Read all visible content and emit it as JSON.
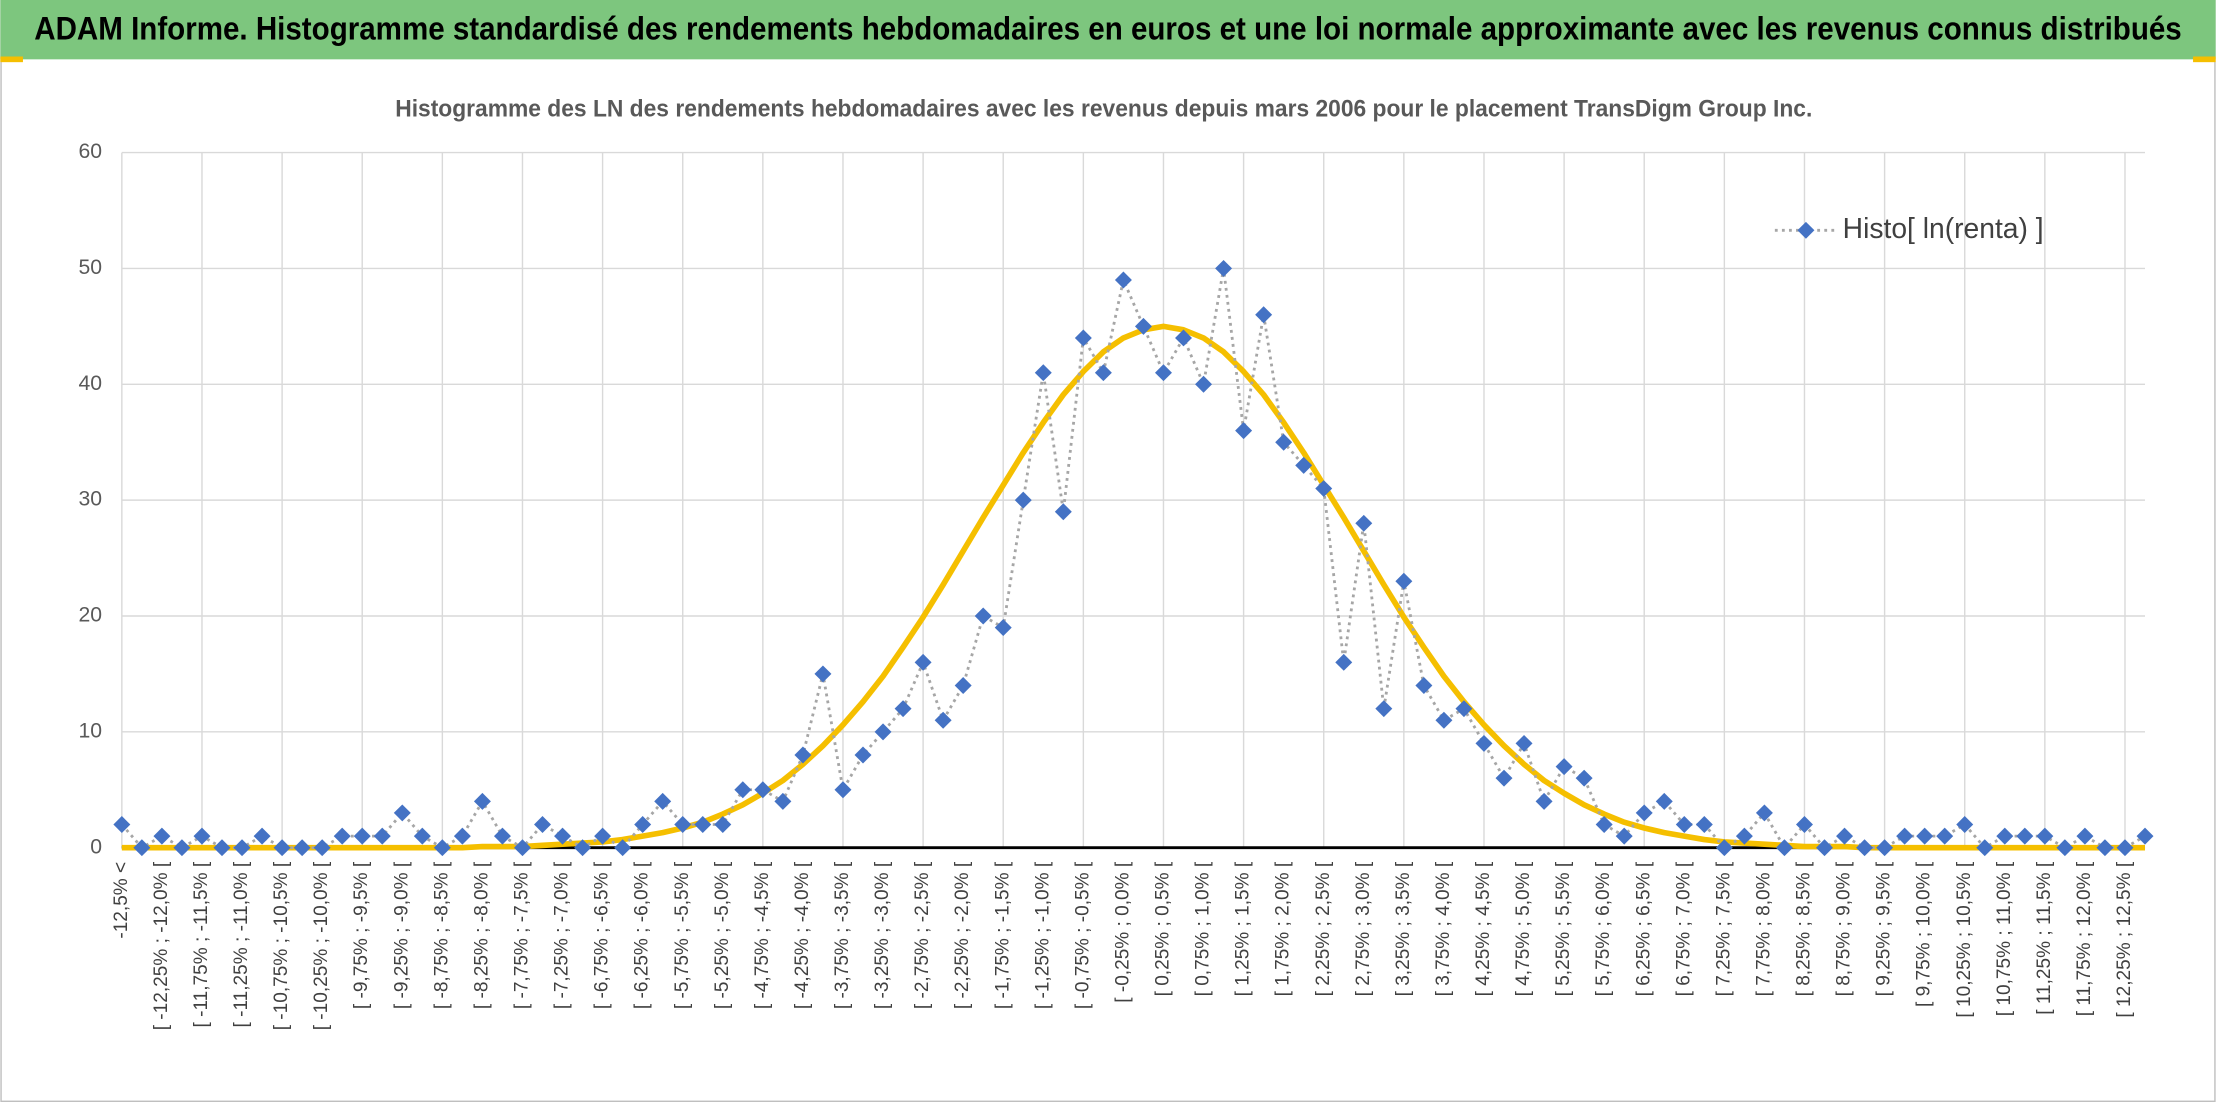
{
  "header": {
    "title": "ADAM Informe. Histogramme standardisé des rendements hebdomadaires en euros et une loi normale approximante avec les revenus connus distribués"
  },
  "chart_data": {
    "type": "line",
    "title": "Histogramme des LN des rendements hebdomadaires avec les revenus depuis mars 2006 pour le placement TransDigm Group Inc.",
    "categories": [
      "-12,5% <",
      null,
      "[ -12,25% ; -12,0% [",
      null,
      "[ -11,75% ; -11,5% [",
      null,
      "[ -11,25% ; -11,0% [",
      null,
      "[ -10,75% ; -10,5% [",
      null,
      "[ -10,25% ; -10,0% [",
      null,
      "[ -9,75% ; -9,5% [",
      null,
      "[ -9,25% ; -9,0% [",
      null,
      "[ -8,75% ; -8,5% [",
      null,
      "[ -8,25% ; -8,0% [",
      null,
      "[ -7,75% ; -7,5% [",
      null,
      "[ -7,25% ; -7,0% [",
      null,
      "[ -6,75% ; -6,5% [",
      null,
      "[ -6,25% ; -6,0% [",
      null,
      "[ -5,75% ; -5,5% [",
      null,
      "[ -5,25% ; -5,0% [",
      null,
      "[ -4,75% ; -4,5% [",
      null,
      "[ -4,25% ; -4,0% [",
      null,
      "[ -3,75% ; -3,5% [",
      null,
      "[ -3,25% ; -3,0% [",
      null,
      "[ -2,75% ; -2,5% [",
      null,
      "[ -2,25% ; -2,0% [",
      null,
      "[ -1,75% ; -1,5% [",
      null,
      "[ -1,25% ; -1,0% [",
      null,
      "[ -0,75% ; -0,5% [",
      null,
      "[ -0,25% ; 0,0% [",
      null,
      "[ 0,25% ; 0,5% [",
      null,
      "[ 0,75% ; 1,0% [",
      null,
      "[ 1,25% ; 1,5% [",
      null,
      "[ 1,75% ; 2,0% [",
      null,
      "[ 2,25% ; 2,5% [",
      null,
      "[ 2,75% ; 3,0% [",
      null,
      "[ 3,25% ; 3,5% [",
      null,
      "[ 3,75% ; 4,0% [",
      null,
      "[ 4,25% ; 4,5% [",
      null,
      "[ 4,75% ; 5,0% [",
      null,
      "[ 5,25% ; 5,5% [",
      null,
      "[ 5,75% ; 6,0% [",
      null,
      "[ 6,25% ; 6,5% [",
      null,
      "[ 6,75% ; 7,0% [",
      null,
      "[ 7,25% ; 7,5% [",
      null,
      "[ 7,75% ; 8,0% [",
      null,
      "[ 8,25% ; 8,5% [",
      null,
      "[ 8,75% ; 9,0% [",
      null,
      "[ 9,25% ; 9,5% [",
      null,
      "[ 9,75% ; 10,0% [",
      null,
      "[ 10,25% ; 10,5% [",
      null,
      "[ 10,75% ; 11,0% [",
      null,
      "[ 11,25% ; 11,5% [",
      null,
      "[ 11,75% ; 12,0% [",
      null,
      "[ 12,25% ; 12,5% [",
      null
    ],
    "series": [
      {
        "name": "Histo[ ln(renta) ]",
        "color": "#4472c4",
        "line_color": "#a6a6a6",
        "marker": "diamond",
        "values": [
          2,
          0,
          1,
          0,
          1,
          0,
          0,
          1,
          0,
          0,
          0,
          1,
          1,
          1,
          3,
          1,
          0,
          1,
          4,
          1,
          0,
          2,
          1,
          0,
          1,
          0,
          2,
          4,
          2,
          2,
          2,
          5,
          5,
          4,
          8,
          15,
          5,
          8,
          10,
          12,
          16,
          11,
          14,
          20,
          19,
          30,
          41,
          29,
          44,
          41,
          49,
          45,
          41,
          44,
          40,
          50,
          36,
          46,
          35,
          33,
          31,
          16,
          28,
          12,
          23,
          14,
          11,
          12,
          9,
          6,
          9,
          4,
          7,
          6,
          2,
          1,
          3,
          4,
          2,
          2,
          0,
          1,
          3,
          0,
          2,
          0,
          1,
          0,
          0,
          1,
          1,
          1,
          2,
          0,
          1,
          1,
          1,
          0,
          1,
          0,
          0,
          1
        ]
      },
      {
        "color": "#f5bf00",
        "marker": "none",
        "values": [
          0,
          0,
          0,
          0,
          0,
          0,
          0,
          0,
          0,
          0,
          0,
          0,
          0,
          0,
          0,
          0,
          0,
          0,
          0.1,
          0.1,
          0.1,
          0.2,
          0.3,
          0.4,
          0.5,
          0.7,
          1,
          1.3,
          1.7,
          2.2,
          2.9,
          3.7,
          4.7,
          5.8,
          7.2,
          8.8,
          10.6,
          12.6,
          14.8,
          17.3,
          19.9,
          22.7,
          25.6,
          28.5,
          31.3,
          34.1,
          36.7,
          39.1,
          41.1,
          42.8,
          44,
          44.7,
          45,
          44.7,
          44,
          42.8,
          41.1,
          39.1,
          36.7,
          34.1,
          31.3,
          28.5,
          25.6,
          22.7,
          19.9,
          17.3,
          14.8,
          12.6,
          10.6,
          8.8,
          7.2,
          5.8,
          4.7,
          3.7,
          2.9,
          2.2,
          1.7,
          1.3,
          1,
          0.7,
          0.5,
          0.4,
          0.3,
          0.2,
          0.1,
          0.1,
          0.1,
          0,
          0,
          0,
          0,
          0,
          0,
          0,
          0,
          0,
          0,
          0,
          0,
          0,
          0,
          0
        ]
      }
    ],
    "ylim": [
      0,
      60
    ],
    "yticks": [
      0,
      10,
      20,
      30,
      40,
      50,
      60
    ],
    "grid": true,
    "legend": "top-right"
  }
}
